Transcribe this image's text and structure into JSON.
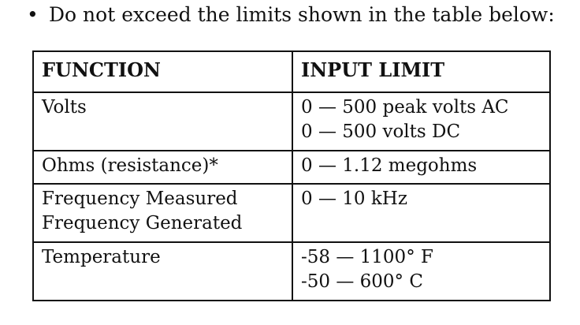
{
  "intro": {
    "bullet": "•",
    "text": "Do not exceed the limits shown in the table below:"
  },
  "table": {
    "headers": [
      "FUNCTION",
      "INPUT LIMIT"
    ],
    "rows": [
      {
        "function": [
          "Volts"
        ],
        "limit": [
          "0 — 500 peak volts AC",
          "0 — 500 volts DC"
        ]
      },
      {
        "function": [
          "Ohms (resistance)*"
        ],
        "limit": [
          "0 — 1.12 megohms"
        ]
      },
      {
        "function": [
          "Frequency Measured",
          "Frequency Generated"
        ],
        "limit": [
          "0 — 10 kHz"
        ]
      },
      {
        "function": [
          "Temperature"
        ],
        "limit": [
          "-58 — 1100° F",
          "-50 — 600° C"
        ]
      }
    ]
  }
}
